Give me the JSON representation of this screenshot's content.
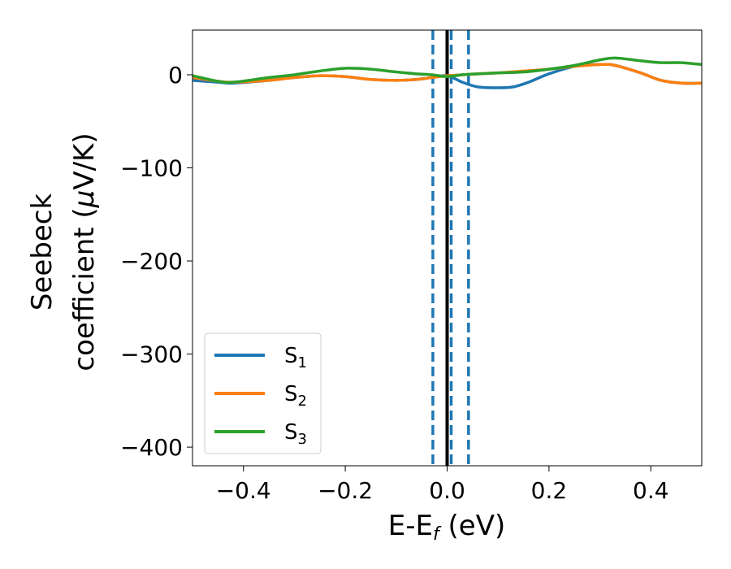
{
  "chart_data": {
    "type": "line",
    "title": "",
    "xlabel": {
      "main": "E-E",
      "sub": "f",
      "tail": " (eV)"
    },
    "ylabel": {
      "line1": "Seebeck",
      "line2_pre": "coefficient  (",
      "mu": "μ",
      "line2_post": "V/K)"
    },
    "xlim": [
      -0.5,
      0.5
    ],
    "ylim": [
      -420,
      48
    ],
    "xticks": [
      -0.4,
      -0.2,
      0.0,
      0.2,
      0.4
    ],
    "xtick_labels": [
      "−0.4",
      "−0.2",
      "0.0",
      "0.2",
      "0.4"
    ],
    "yticks": [
      0,
      -100,
      -200,
      -300,
      -400
    ],
    "ytick_labels": [
      "0",
      "−100",
      "−200",
      "−300",
      "−400"
    ],
    "grid": false,
    "legend_position": "lower-left",
    "series": [
      {
        "name": "S",
        "sub": "1",
        "color": "#1f77b4",
        "x": [
          -0.5,
          -0.45,
          -0.42,
          -0.35,
          -0.3,
          -0.25,
          -0.2,
          -0.15,
          -0.1,
          -0.06,
          -0.03,
          0.0,
          0.03,
          0.06,
          0.1,
          0.13,
          0.16,
          0.2,
          0.25,
          0.3,
          0.33,
          0.38,
          0.42,
          0.46,
          0.5
        ],
        "y": [
          -6,
          -8,
          -9,
          -6,
          -3,
          -1,
          -2,
          -5,
          -6,
          -5,
          -3,
          -1,
          -8,
          -13,
          -14,
          -13,
          -8,
          1,
          9,
          11,
          10,
          2,
          -6,
          -9,
          -9
        ]
      },
      {
        "name": "S",
        "sub": "2",
        "color": "#ff7f0e",
        "x": [
          -0.5,
          -0.45,
          -0.42,
          -0.35,
          -0.3,
          -0.25,
          -0.2,
          -0.15,
          -0.1,
          -0.06,
          -0.03,
          0.0,
          0.03,
          0.06,
          0.1,
          0.15,
          0.2,
          0.25,
          0.3,
          0.33,
          0.38,
          0.42,
          0.46,
          0.5
        ],
        "y": [
          -3,
          -7,
          -8,
          -6,
          -3,
          -1,
          -2,
          -5,
          -6,
          -5,
          -3,
          -1,
          0,
          1,
          2,
          4,
          6,
          9,
          11,
          10,
          2,
          -6,
          -9,
          -9
        ]
      },
      {
        "name": "S",
        "sub": "3",
        "color": "#2ca02c",
        "x": [
          -0.5,
          -0.45,
          -0.42,
          -0.35,
          -0.3,
          -0.25,
          -0.2,
          -0.15,
          -0.1,
          -0.06,
          -0.03,
          0.0,
          0.03,
          0.06,
          0.1,
          0.15,
          0.2,
          0.25,
          0.3,
          0.33,
          0.38,
          0.42,
          0.46,
          0.5
        ],
        "y": [
          -1,
          -7,
          -8,
          -3,
          0,
          4,
          7,
          6,
          3,
          1,
          0,
          -2,
          0,
          1,
          2,
          3,
          6,
          10,
          16,
          18,
          15,
          13,
          13,
          11
        ]
      }
    ],
    "vlines": [
      {
        "x": -0.028,
        "style": "dashed",
        "color": "#1f77b4"
      },
      {
        "x": 0.008,
        "style": "dashed",
        "color": "#1f77b4"
      },
      {
        "x": 0.042,
        "style": "dashed",
        "color": "#1f77b4"
      },
      {
        "x": 0.0,
        "style": "solid",
        "color": "#000000"
      }
    ]
  }
}
